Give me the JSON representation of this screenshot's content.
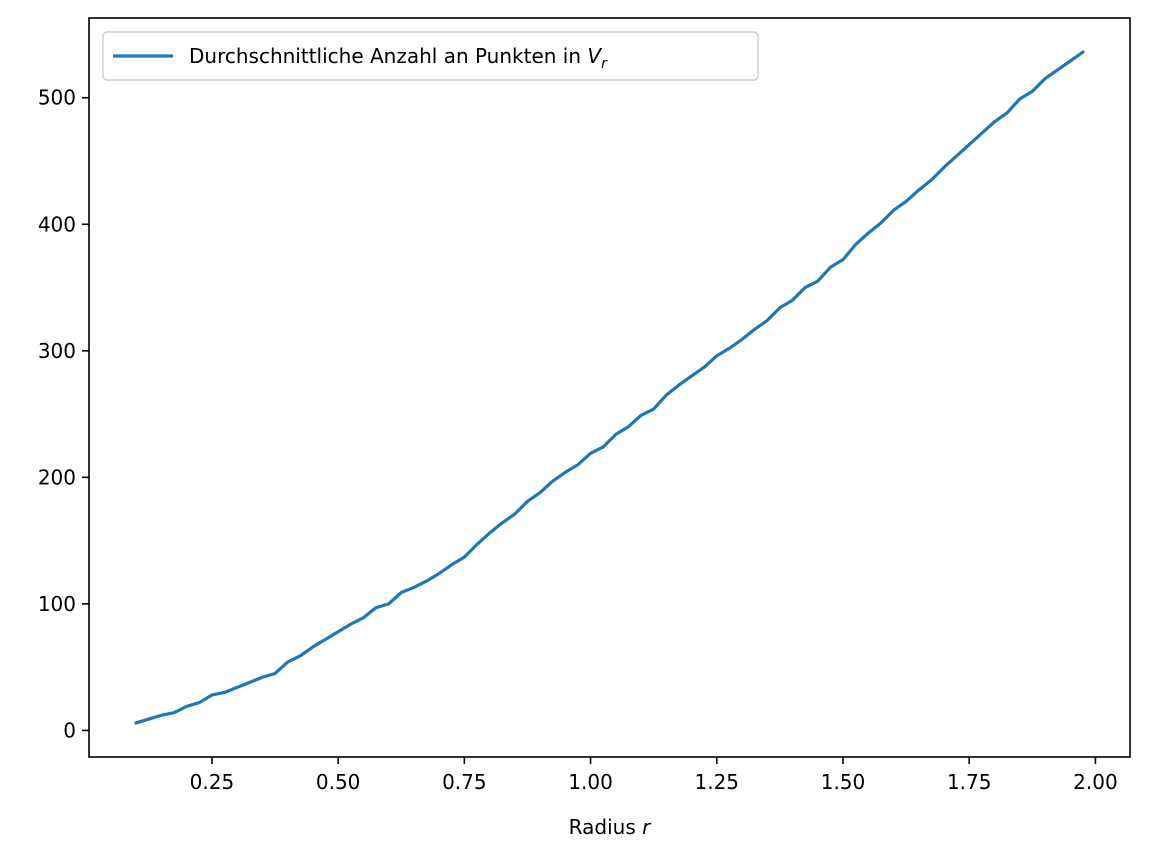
{
  "chart_data": {
    "type": "line",
    "title": "",
    "xlabel": "Radius",
    "xlabel_var": "r",
    "ylabel": "",
    "xlim": [
      0.0065,
      2.0685
    ],
    "ylim": [
      -21,
      563
    ],
    "x_ticks": [
      0.25,
      0.5,
      0.75,
      1.0,
      1.25,
      1.5,
      1.75,
      2.0
    ],
    "x_tick_labels": [
      "0.25",
      "0.50",
      "0.75",
      "1.00",
      "1.25",
      "1.50",
      "1.75",
      "2.00"
    ],
    "y_ticks": [
      0,
      100,
      200,
      300,
      400,
      500
    ],
    "y_tick_labels": [
      "0",
      "100",
      "200",
      "300",
      "400",
      "500"
    ],
    "grid": false,
    "legend_position": "upper-left",
    "series": [
      {
        "name": "Durchschnittliche Anzahl an Punkten in",
        "name_math": "V",
        "name_math_sub": "r",
        "color": "#1f77b4",
        "x": [
          0.1,
          0.125,
          0.15,
          0.175,
          0.2,
          0.225,
          0.25,
          0.275,
          0.3,
          0.325,
          0.35,
          0.375,
          0.4,
          0.425,
          0.45,
          0.475,
          0.5,
          0.525,
          0.55,
          0.575,
          0.6,
          0.625,
          0.65,
          0.675,
          0.7,
          0.725,
          0.75,
          0.775,
          0.8,
          0.825,
          0.85,
          0.875,
          0.9,
          0.925,
          0.95,
          0.975,
          1.0,
          1.025,
          1.05,
          1.075,
          1.1,
          1.125,
          1.15,
          1.175,
          1.2,
          1.225,
          1.25,
          1.275,
          1.3,
          1.325,
          1.35,
          1.375,
          1.4,
          1.425,
          1.45,
          1.475,
          1.5,
          1.525,
          1.55,
          1.575,
          1.6,
          1.625,
          1.65,
          1.675,
          1.7,
          1.725,
          1.75,
          1.775,
          1.8,
          1.825,
          1.85,
          1.875,
          1.9,
          1.925,
          1.95,
          1.975
        ],
        "y": [
          6,
          9,
          12,
          14,
          19,
          22,
          28,
          30,
          34,
          38,
          42,
          45,
          54,
          59,
          66,
          72,
          78,
          84,
          89,
          97,
          100,
          109,
          113,
          118,
          124,
          131,
          137,
          147,
          156,
          164,
          171,
          181,
          188,
          197,
          204,
          210,
          219,
          224,
          234,
          240,
          249,
          254,
          265,
          273,
          280,
          287,
          296,
          302,
          309,
          317,
          324,
          334,
          340,
          350,
          355,
          366,
          372,
          384,
          393,
          401,
          411,
          418,
          427,
          435,
          445,
          454,
          463,
          472,
          481,
          488,
          499,
          505,
          515,
          522,
          529,
          536
        ]
      }
    ]
  }
}
